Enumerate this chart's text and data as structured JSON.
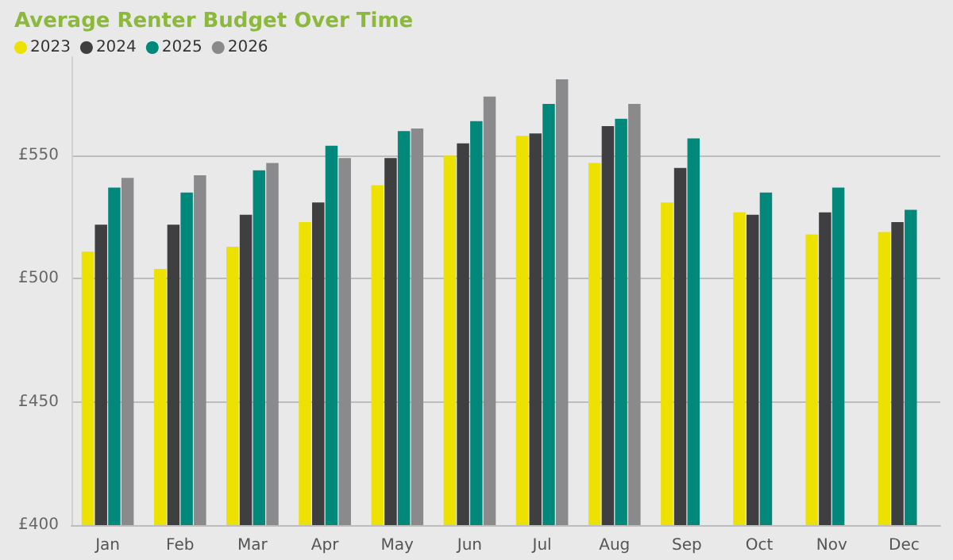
{
  "chart_data": {
    "type": "bar",
    "title": "Average Renter Budget Over Time",
    "categories": [
      "Jan",
      "Feb",
      "Mar",
      "Apr",
      "May",
      "Jun",
      "Jul",
      "Aug",
      "Sep",
      "Oct",
      "Nov",
      "Dec"
    ],
    "series": [
      {
        "name": "2023",
        "color": "#ede100",
        "values": [
          511,
          504,
          513,
          523,
          538,
          550,
          558,
          547,
          531,
          527,
          518,
          519
        ]
      },
      {
        "name": "2024",
        "color": "#3f3f42",
        "values": [
          522,
          522,
          526,
          531,
          549,
          555,
          559,
          562,
          545,
          526,
          527,
          523
        ]
      },
      {
        "name": "2025",
        "color": "#00897a",
        "values": [
          537,
          535,
          544,
          554,
          560,
          564,
          571,
          565,
          557,
          535,
          537,
          528
        ]
      },
      {
        "name": "2026",
        "color": "#8a8a8c",
        "values": [
          541,
          542,
          547,
          549,
          561,
          574,
          581,
          571,
          null,
          null,
          null,
          null
        ]
      }
    ],
    "ylim": [
      400,
      590
    ],
    "yticks": [
      {
        "value": 400,
        "label": "£400"
      },
      {
        "value": 450,
        "label": "£450"
      },
      {
        "value": 500,
        "label": "£500"
      },
      {
        "value": 550,
        "label": "£550"
      }
    ],
    "grid": "y",
    "legend": "top left"
  }
}
